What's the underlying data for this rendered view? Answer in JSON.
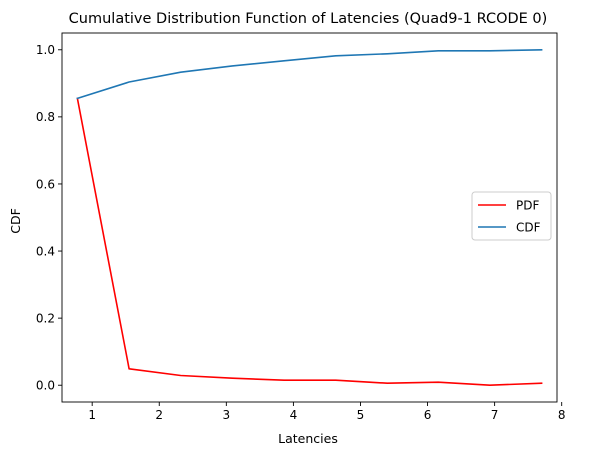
{
  "chart_data": {
    "type": "line",
    "title": "Cumulative Distribution Function of Latencies (Quad9-1 RCODE 0)",
    "xlabel": "Latencies",
    "ylabel": "CDF",
    "xlim": [
      0.55,
      7.93
    ],
    "ylim": [
      -0.05,
      1.05
    ],
    "xticks": [
      "1",
      "2",
      "3",
      "4",
      "5",
      "6",
      "7",
      "8"
    ],
    "yticks": [
      "0.0",
      "0.2",
      "0.4",
      "0.6",
      "0.8",
      "1.0"
    ],
    "grid": false,
    "legend_position": "center-right",
    "x": [
      0.78,
      1.55,
      2.32,
      3.09,
      3.86,
      4.63,
      5.4,
      6.16,
      6.93,
      7.7
    ],
    "series": [
      {
        "name": "PDF",
        "color": "#ff0000",
        "values": [
          0.855,
          0.049,
          0.029,
          0.021,
          0.015,
          0.015,
          0.006,
          0.009,
          0.0,
          0.006
        ]
      },
      {
        "name": "CDF",
        "color": "#1f77b4",
        "values": [
          0.855,
          0.904,
          0.933,
          0.952,
          0.967,
          0.982,
          0.988,
          0.997,
          0.997,
          1.0
        ]
      }
    ]
  }
}
